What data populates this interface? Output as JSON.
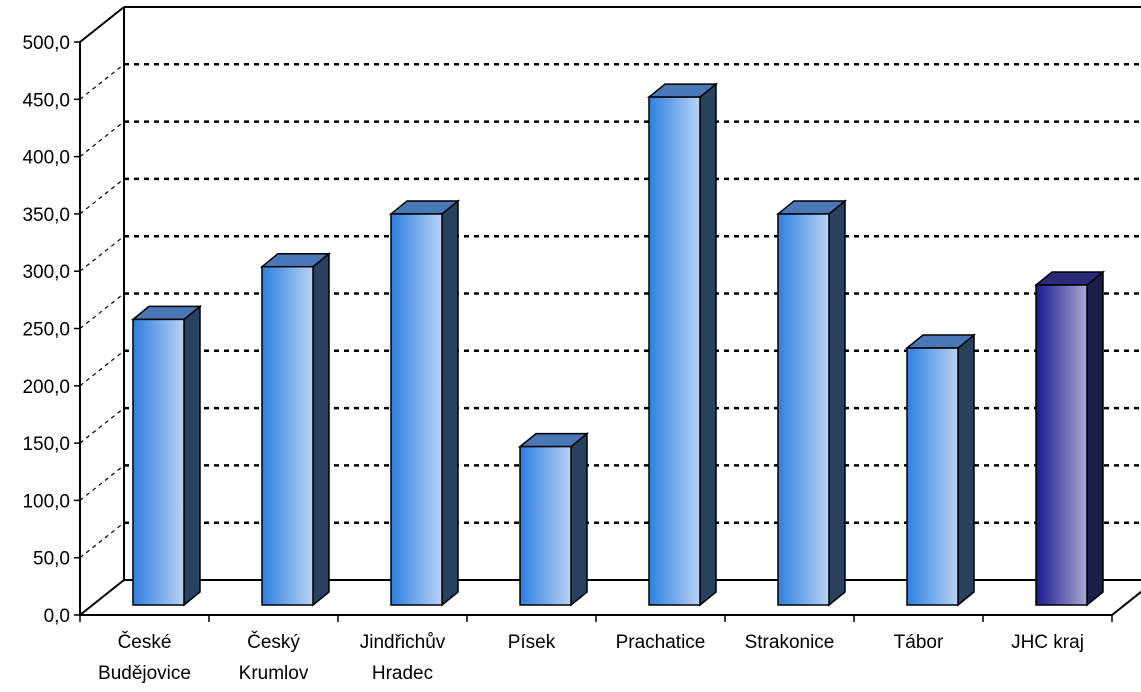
{
  "chart_data": {
    "type": "bar",
    "categories": [
      [
        "České",
        "Budějovice"
      ],
      [
        "Český",
        "Krumlov"
      ],
      [
        "Jindřichův",
        "Hradec"
      ],
      [
        "Písek"
      ],
      [
        "Prachatice"
      ],
      [
        "Strakonice"
      ],
      [
        "Tábor"
      ],
      [
        "JHC kraj"
      ]
    ],
    "values": [
      278,
      324,
      370,
      167,
      472,
      370,
      253,
      308
    ],
    "highlight_index": 7,
    "ylim": [
      0,
      500
    ],
    "yticks": [
      "0,0",
      "50,0",
      "100,0",
      "150,0",
      "200,0",
      "250,0",
      "300,0",
      "350,0",
      "400,0",
      "450,0",
      "500,0"
    ],
    "grid": true,
    "colors": {
      "bar_light": "#b8d3f2",
      "bar_mid": "#2f7fe0",
      "bar_side": "#27415f",
      "bar_top": "#4a78b6",
      "highlight_light": "#a9a8d4",
      "highlight_mid": "#1a1a8a",
      "highlight_side": "#1b1f4a",
      "highlight_top": "#2a2a7a"
    }
  }
}
